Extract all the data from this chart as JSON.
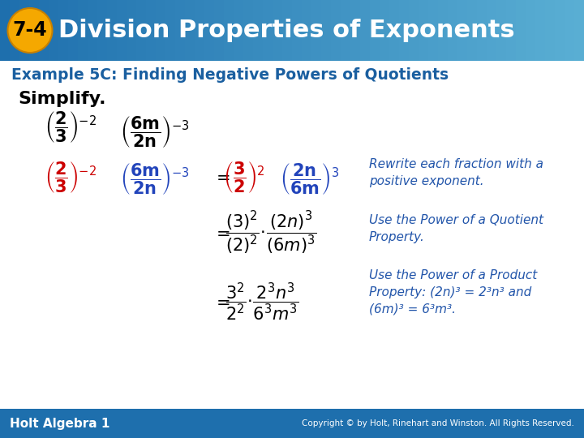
{
  "header_bg_color": "#1e6fad",
  "header_gradient_right": "#5aafd4",
  "header_text": "Division Properties of Exponents",
  "header_badge_text": "7-4",
  "header_badge_bg": "#f5a800",
  "header_text_color": "#ffffff",
  "subheader_text": "Example 5C: Finding Negative Powers of Quotients",
  "subheader_color": "#1a5fa0",
  "body_bg_color": "#ffffff",
  "simplify_label": "Simplify.",
  "simplify_color": "#000000",
  "red_color": "#cc0000",
  "blue_color": "#2255aa",
  "black_color": "#000000",
  "footer_bg_color": "#1e6fad",
  "footer_left": "Holt Algebra 1",
  "footer_right": "Copyright © by Holt, Rinehart and Winston. All Rights Reserved.",
  "footer_text_color": "#ffffff",
  "ann1": "Rewrite each fraction with a\npositive exponent.",
  "ann2": "Use the Power of a Quotient\nProperty.",
  "ann3": "Use the Power of a Product\nProperty: (2n)³ = 2³n³ and\n(6m)³ = 6³m³."
}
